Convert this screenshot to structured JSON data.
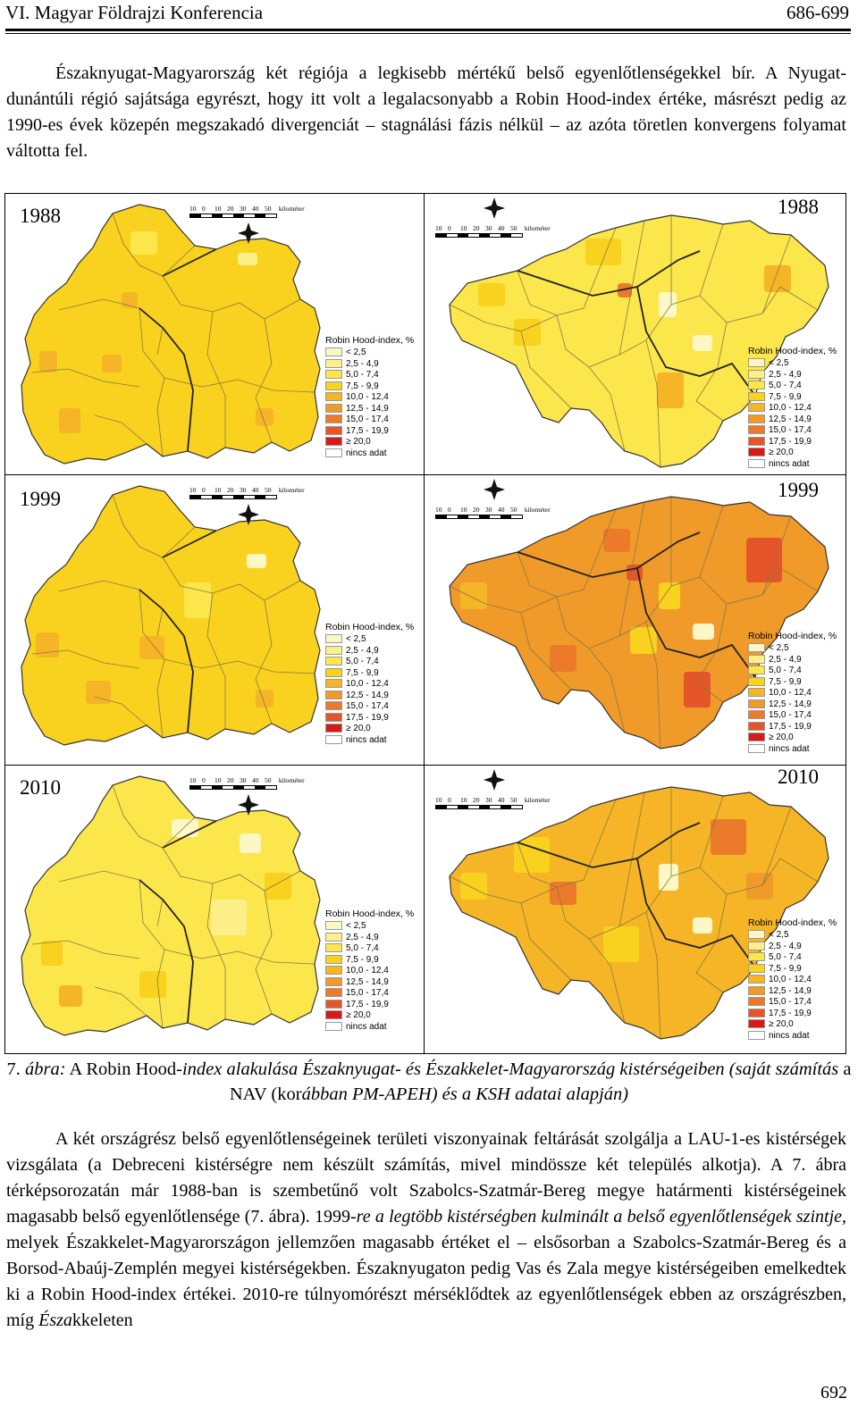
{
  "header": {
    "title": "VI. Magyar Földrajzi Konferencia",
    "pages": "686-699"
  },
  "paragraph1": "Északnyugat-Magyarország két régiója a legkisebb mértékű belső egyenlőtlenségekkel bír. A Nyugat-dunántúli régió sajátsága egyrészt, hogy itt volt a legalacsonyabb a Robin Hood-index értéke, másrészt pedig az 1990-es évek közepén megszakadó divergenciát – stagnálási fázis nélkül – az azóta töretlen konvergens folyamat váltotta fel.",
  "figure": {
    "scale_ticks": [
      "10",
      "0",
      "10",
      "20",
      "30",
      "40",
      "50"
    ],
    "scale_unit": "kilométer",
    "north_label": "N",
    "legend": {
      "title": "Robin Hood-index, %",
      "classes": [
        {
          "label": "< 2,5",
          "color": "#fdf7c5"
        },
        {
          "label": "2,5 - 4,9",
          "color": "#fdf08a"
        },
        {
          "label": "5,0 - 7,4",
          "color": "#fbe64c"
        },
        {
          "label": "7,5 - 9,9",
          "color": "#f8d21e"
        },
        {
          "label": "10,0 - 12,4",
          "color": "#f5b526"
        },
        {
          "label": "12,5 - 14,9",
          "color": "#f09a2a"
        },
        {
          "label": "15,0 - 17,4",
          "color": "#eb7a2b"
        },
        {
          "label": "17,5 - 19,9",
          "color": "#e5552a"
        },
        {
          "label": "≥ 20,0",
          "color": "#d61a1a"
        },
        {
          "label": "nincs adat",
          "color": "#ffffff"
        }
      ]
    },
    "panels": [
      {
        "year": "1988",
        "region": "west"
      },
      {
        "year": "1988",
        "region": "east"
      },
      {
        "year": "1999",
        "region": "west"
      },
      {
        "year": "1999",
        "region": "east"
      },
      {
        "year": "2010",
        "region": "west"
      },
      {
        "year": "2010",
        "region": "east"
      }
    ],
    "caption": {
      "number": "7.",
      "label": "ábra:",
      "part1": "A Robin Hood-",
      "part2": "index alakulása Északnyugat- és Északkelet-Magyarország kistérségeiben (saját számítás",
      "part3": "a NAV (kor",
      "part4": "ábban PM-APEH) és a KSH adatai alapján)"
    }
  },
  "paragraph2_a": "A két országrész belső egyenlőtlenségeinek területi viszonyainak feltárását szolgálja a LAU-1-es kistérségek vizsgálata (a Debreceni kistérségre nem készült számítás, mivel mindössze két település alkotja). A 7. ábra térképsorozatán már 1988-ban is szembetűnő volt Szabolcs-Szatmár-Bereg megye határmenti kistérségeinek magasabb belső egyenlőtlensége (7. ábra). 1999-",
  "paragraph2_b": "re a legtöbb kistérségben kulminált a belső egyenlőtlenségek szintje",
  "paragraph2_c": ", melyek Északkelet-Magyarországon jellemzően magasabb értéket el – elsősorban a Szabolcs-Szatmár-Bereg és a Borsod-Abaúj-Zemplén megyei kistérségekben. Északnyugaton pedig Vas és Zala megye kistérségeiben emelkedtek ki a Robin Hood-index értékei. 2010-re túlnyomórészt mérséklődtek az egyenlőtlenségek ebben az országrészben, míg",
  "paragraph2_d": "Észa",
  "paragraph2_e": "kkeleten",
  "page_number": "692"
}
